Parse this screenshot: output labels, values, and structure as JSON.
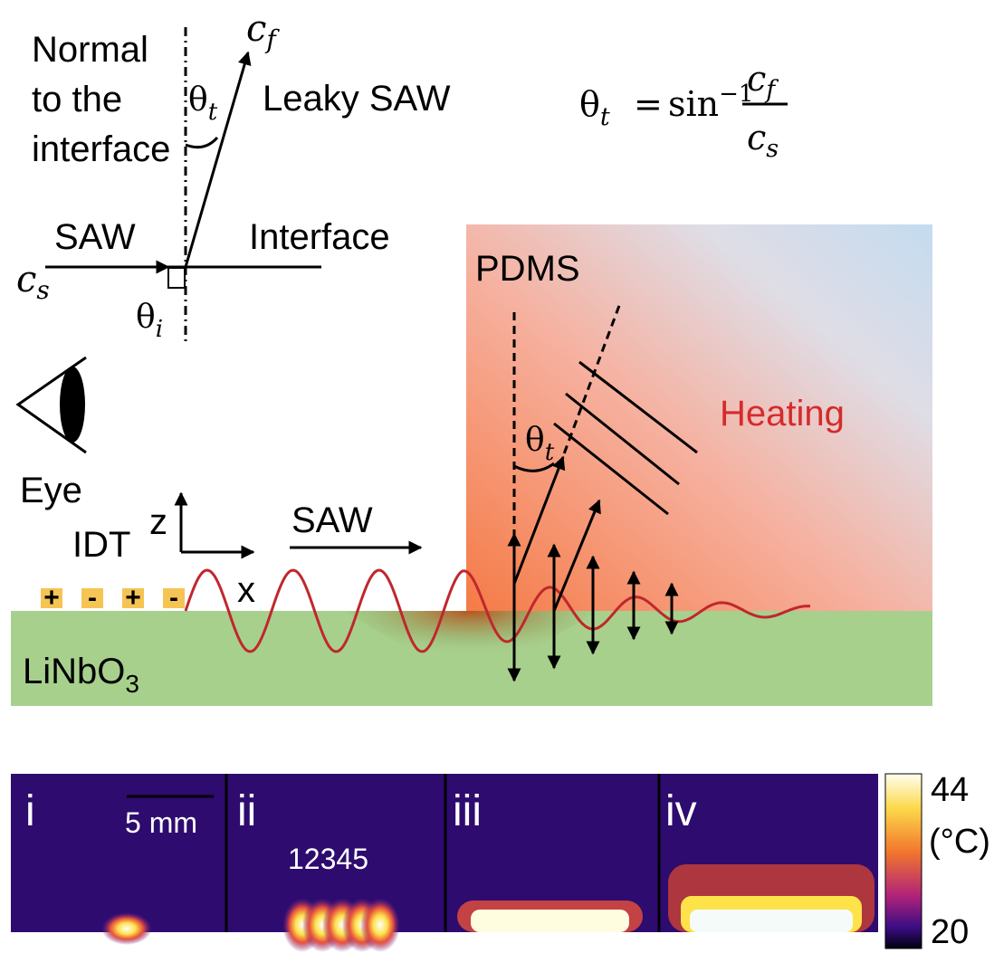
{
  "inset": {
    "normal_label": [
      "Normal",
      "to the",
      "interface"
    ],
    "cf": {
      "base": "c",
      "sub": "f"
    },
    "theta_t": {
      "base": "θ",
      "sub": "t"
    },
    "leaky_saw": "Leaky SAW",
    "saw": "SAW",
    "interface": "Interface",
    "cs": {
      "base": "c",
      "sub": "s"
    },
    "theta_i": {
      "base": "θ",
      "sub": "i"
    }
  },
  "formula": {
    "lhs": {
      "base": "θ",
      "sub": "t"
    },
    "eq": "=",
    "fn": "sin",
    "exp": "−1",
    "num": {
      "base": "c",
      "sub": "f"
    },
    "den": {
      "base": "c",
      "sub": "s"
    }
  },
  "device": {
    "pdms": "PDMS",
    "heating": "Heating",
    "eye": "Eye",
    "idt": "IDT",
    "electrodes": [
      "+",
      "-",
      "+",
      "-"
    ],
    "z": "z",
    "x": "x",
    "saw": "SAW",
    "substrate": {
      "base": "LiNbO",
      "sub": "3"
    },
    "theta_t": {
      "base": "θ",
      "sub": "t"
    }
  },
  "thermal": {
    "panels": [
      "i",
      "ii",
      "iii",
      "iv"
    ],
    "scale_bar": "5 mm",
    "electrode_numbers": "12345",
    "colorbar": {
      "max": "44",
      "unit": "(°C)",
      "min": "20"
    }
  }
}
